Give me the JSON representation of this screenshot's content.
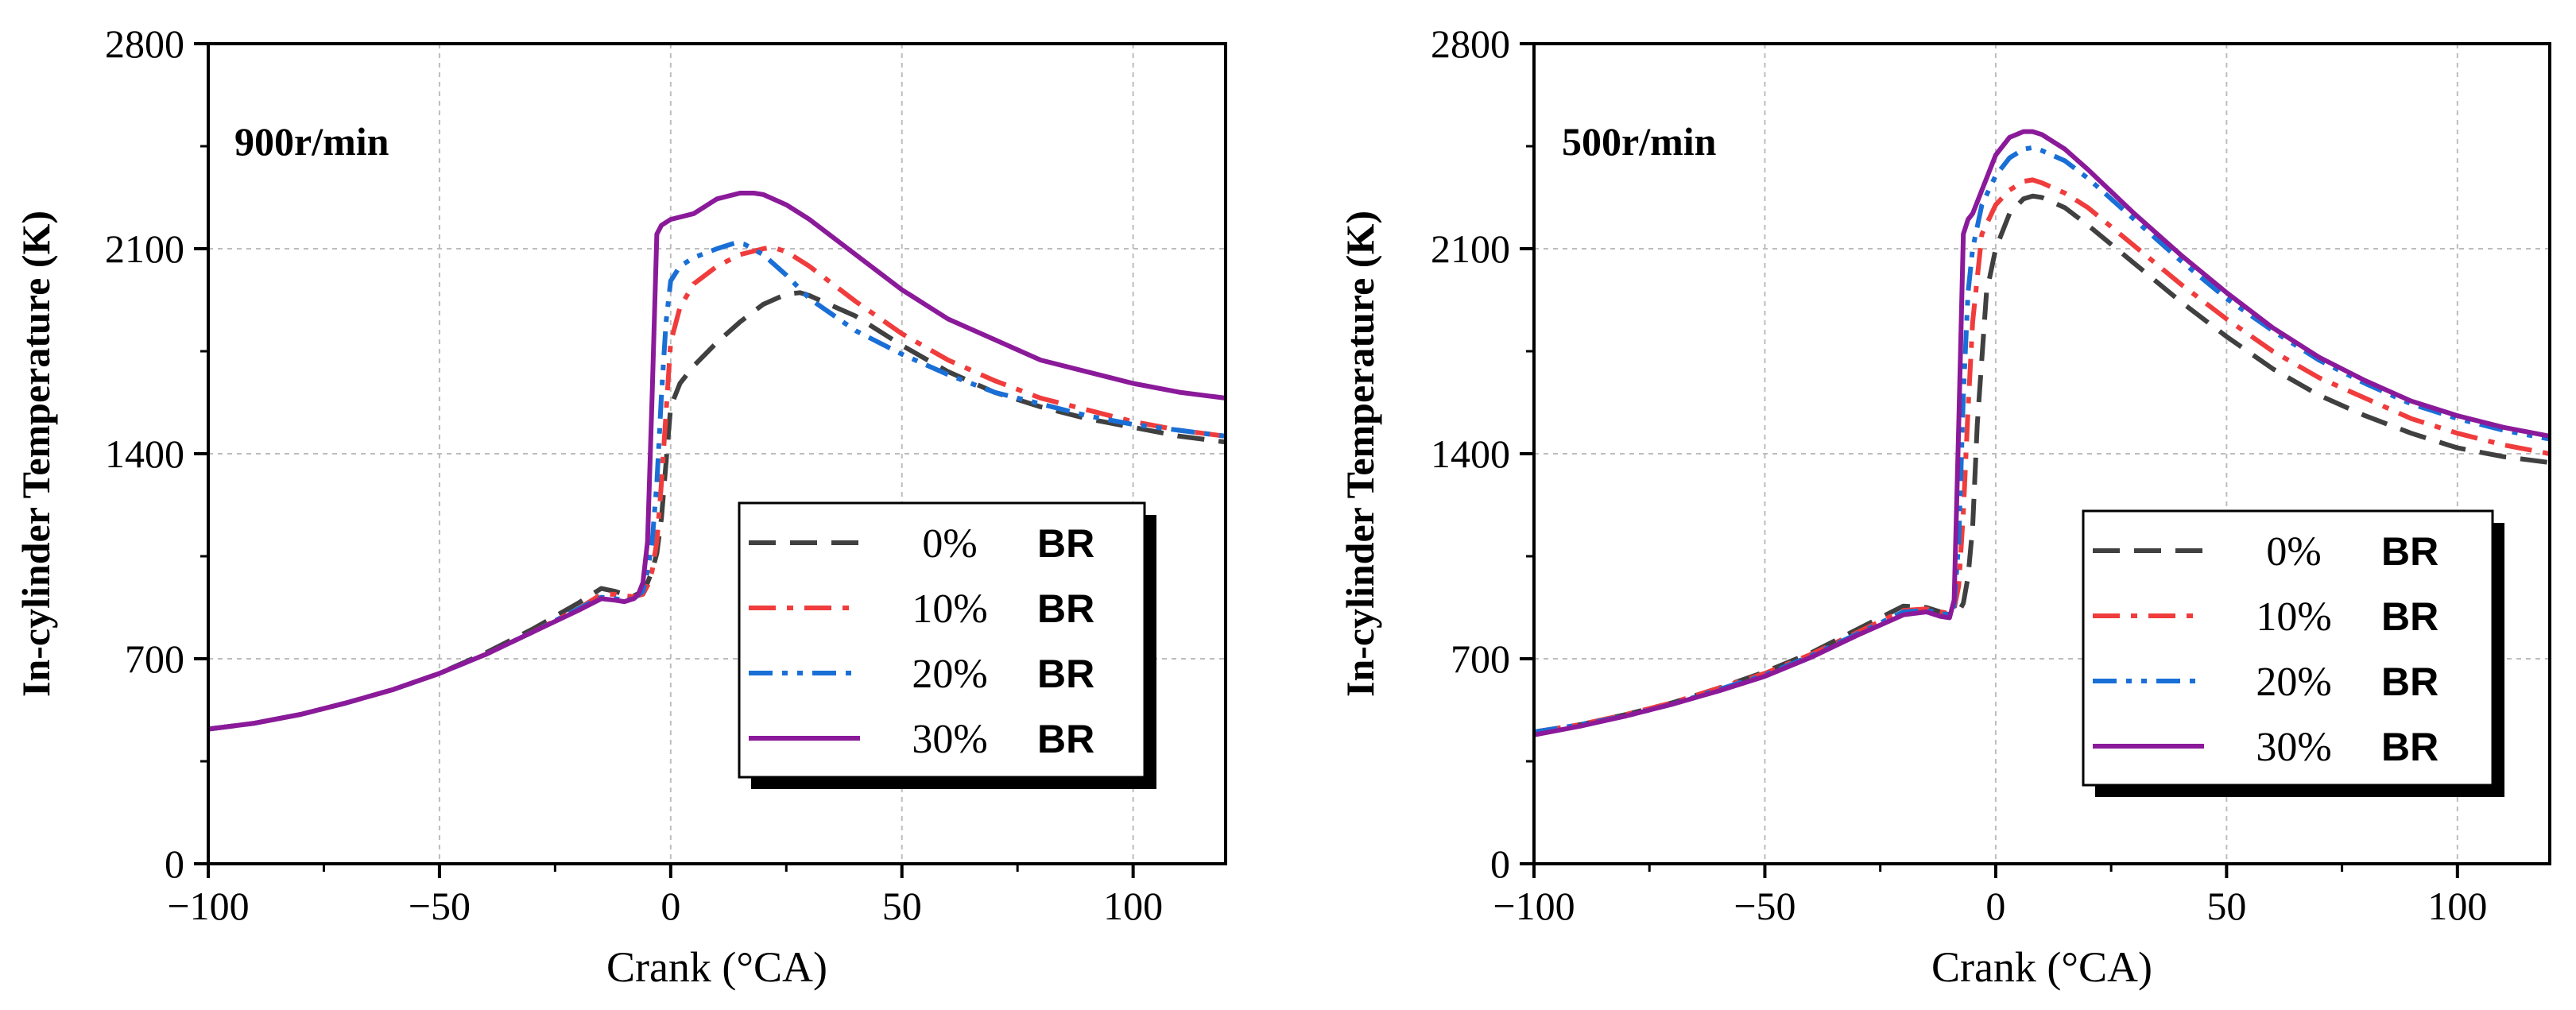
{
  "chart_data": [
    {
      "type": "line",
      "title": "",
      "annotation": "900r/min",
      "xlabel": "Crank (°CA)",
      "ylabel": "In-cylinder Temperature (K)",
      "xlim": [
        -100,
        120
      ],
      "ylim": [
        0,
        2800
      ],
      "xticks": [
        -100,
        -50,
        0,
        50,
        100
      ],
      "xtick_labels": [
        "−100",
        "−50",
        "0",
        "50",
        "100"
      ],
      "yticks": [
        0,
        700,
        1400,
        2100,
        2800
      ],
      "ytick_labels": [
        "0",
        "700",
        "1400",
        "2100",
        "2800"
      ],
      "grid": true,
      "legend_position": "center-right",
      "series": [
        {
          "name": "0%",
          "suffix": "BR",
          "color": "#404040",
          "style": "dash",
          "x": [
            -100,
            -90,
            -80,
            -70,
            -60,
            -50,
            -40,
            -30,
            -20,
            -15,
            -12,
            -10,
            -8,
            -6,
            -5,
            -4,
            -3,
            -2,
            0,
            2,
            5,
            10,
            15,
            20,
            25,
            28,
            30,
            40,
            50,
            60,
            70,
            80,
            90,
            100,
            110,
            120
          ],
          "y": [
            460,
            480,
            510,
            550,
            595,
            650,
            720,
            800,
            890,
            940,
            930,
            920,
            915,
            930,
            960,
            1000,
            1060,
            1180,
            1560,
            1640,
            1700,
            1780,
            1850,
            1910,
            1945,
            1950,
            1940,
            1870,
            1770,
            1680,
            1610,
            1560,
            1520,
            1490,
            1460,
            1440
          ]
        },
        {
          "name": "10%",
          "suffix": "BR",
          "color": "#f03c3c",
          "style": "dashdot",
          "x": [
            -100,
            -90,
            -80,
            -70,
            -60,
            -50,
            -40,
            -30,
            -20,
            -15,
            -12,
            -10,
            -8,
            -6,
            -5,
            -4,
            -3,
            -2,
            0,
            2,
            5,
            10,
            15,
            20,
            22,
            25,
            30,
            40,
            50,
            60,
            70,
            80,
            90,
            100,
            110,
            120
          ],
          "y": [
            460,
            480,
            510,
            550,
            595,
            650,
            715,
            790,
            870,
            920,
            920,
            915,
            912,
            920,
            950,
            1000,
            1100,
            1300,
            1780,
            1900,
            1980,
            2040,
            2080,
            2100,
            2105,
            2090,
            2040,
            1920,
            1810,
            1720,
            1650,
            1590,
            1550,
            1510,
            1480,
            1460
          ]
        },
        {
          "name": "20%",
          "suffix": "BR",
          "color": "#1a6fd6",
          "style": "dashdotdot",
          "x": [
            -100,
            -90,
            -80,
            -70,
            -60,
            -50,
            -40,
            -30,
            -20,
            -15,
            -12,
            -10,
            -8,
            -6,
            -5,
            -4,
            -3,
            -2,
            -1,
            0,
            2,
            5,
            10,
            14,
            16,
            20,
            25,
            30,
            40,
            50,
            60,
            70,
            80,
            90,
            100,
            110,
            120
          ],
          "y": [
            460,
            480,
            510,
            550,
            595,
            650,
            715,
            790,
            870,
            910,
            905,
            900,
            905,
            930,
            1000,
            1100,
            1300,
            1600,
            1850,
            1990,
            2040,
            2070,
            2100,
            2120,
            2115,
            2080,
            2010,
            1930,
            1820,
            1740,
            1670,
            1610,
            1570,
            1530,
            1500,
            1480,
            1460
          ]
        },
        {
          "name": "30%",
          "suffix": "BR",
          "color": "#8b1a9a",
          "style": "solid",
          "x": [
            -100,
            -90,
            -80,
            -70,
            -60,
            -50,
            -40,
            -30,
            -20,
            -15,
            -12,
            -10,
            -8,
            -7,
            -6,
            -5,
            -4,
            -3,
            -2,
            0,
            5,
            10,
            15,
            18,
            20,
            25,
            30,
            40,
            50,
            60,
            70,
            80,
            90,
            100,
            110,
            120
          ],
          "y": [
            460,
            480,
            510,
            550,
            595,
            650,
            715,
            790,
            865,
            905,
            900,
            895,
            905,
            920,
            960,
            1100,
            1600,
            2150,
            2180,
            2200,
            2220,
            2270,
            2290,
            2290,
            2285,
            2250,
            2200,
            2080,
            1960,
            1860,
            1790,
            1720,
            1680,
            1640,
            1610,
            1590
          ]
        }
      ]
    },
    {
      "type": "line",
      "title": "",
      "annotation": "500r/min",
      "xlabel": "Crank (°CA)",
      "ylabel": "In-cylinder Temperature (K)",
      "xlim": [
        -100,
        120
      ],
      "ylim": [
        0,
        2800
      ],
      "xticks": [
        -100,
        -50,
        0,
        50,
        100
      ],
      "xtick_labels": [
        "−100",
        "−50",
        "0",
        "50",
        "100"
      ],
      "yticks": [
        0,
        700,
        1400,
        2100,
        2800
      ],
      "ytick_labels": [
        "0",
        "700",
        "1400",
        "2100",
        "2800"
      ],
      "grid": true,
      "legend_position": "center-right",
      "series": [
        {
          "name": "0%",
          "suffix": "BR",
          "color": "#404040",
          "style": "dash",
          "x": [
            -100,
            -90,
            -80,
            -70,
            -60,
            -50,
            -40,
            -30,
            -20,
            -15,
            -12,
            -10,
            -8,
            -7,
            -6,
            -5,
            -4,
            -2,
            0,
            3,
            6,
            8,
            10,
            15,
            20,
            30,
            40,
            50,
            60,
            70,
            80,
            90,
            100,
            110,
            120
          ],
          "y": [
            450,
            475,
            510,
            550,
            600,
            655,
            720,
            800,
            880,
            875,
            860,
            850,
            860,
            890,
            980,
            1150,
            1500,
            1950,
            2100,
            2220,
            2270,
            2280,
            2275,
            2240,
            2180,
            2050,
            1920,
            1800,
            1690,
            1600,
            1530,
            1470,
            1420,
            1390,
            1370
          ]
        },
        {
          "name": "10%",
          "suffix": "BR",
          "color": "#f03c3c",
          "style": "dashdot",
          "x": [
            -100,
            -90,
            -80,
            -70,
            -60,
            -50,
            -40,
            -30,
            -20,
            -15,
            -12,
            -10,
            -9,
            -8,
            -7,
            -6,
            -5,
            -3,
            0,
            3,
            6,
            8,
            10,
            15,
            20,
            30,
            40,
            50,
            60,
            70,
            80,
            90,
            100,
            110,
            120
          ],
          "y": [
            450,
            475,
            510,
            550,
            600,
            650,
            715,
            790,
            865,
            870,
            860,
            855,
            870,
            950,
            1200,
            1550,
            1850,
            2150,
            2250,
            2300,
            2330,
            2335,
            2325,
            2290,
            2240,
            2110,
            1980,
            1860,
            1750,
            1660,
            1590,
            1520,
            1470,
            1430,
            1400
          ]
        },
        {
          "name": "20%",
          "suffix": "BR",
          "color": "#1a6fd6",
          "style": "dashdotdot",
          "x": [
            -100,
            -90,
            -80,
            -70,
            -60,
            -50,
            -40,
            -30,
            -20,
            -15,
            -12,
            -10,
            -9,
            -8,
            -7,
            -6,
            -5,
            -3,
            0,
            3,
            6,
            8,
            10,
            15,
            20,
            30,
            40,
            50,
            60,
            70,
            80,
            90,
            100,
            110,
            120
          ],
          "y": [
            450,
            475,
            505,
            545,
            595,
            645,
            710,
            785,
            860,
            865,
            855,
            850,
            880,
            1100,
            1600,
            1950,
            2100,
            2250,
            2350,
            2410,
            2440,
            2445,
            2435,
            2400,
            2340,
            2200,
            2060,
            1930,
            1820,
            1720,
            1640,
            1570,
            1520,
            1480,
            1450
          ]
        },
        {
          "name": "30%",
          "suffix": "BR",
          "color": "#8b1a9a",
          "style": "solid",
          "x": [
            -100,
            -90,
            -80,
            -70,
            -60,
            -50,
            -40,
            -30,
            -20,
            -15,
            -12,
            -10,
            -9,
            -8,
            -7,
            -6,
            -5,
            -3,
            0,
            3,
            6,
            8,
            10,
            15,
            20,
            30,
            40,
            50,
            60,
            70,
            80,
            90,
            100,
            110,
            120
          ],
          "y": [
            440,
            470,
            505,
            545,
            590,
            640,
            705,
            780,
            850,
            860,
            845,
            840,
            900,
            1500,
            2150,
            2200,
            2220,
            2300,
            2420,
            2480,
            2500,
            2500,
            2490,
            2440,
            2370,
            2220,
            2080,
            1950,
            1830,
            1730,
            1650,
            1580,
            1530,
            1490,
            1460
          ]
        }
      ]
    }
  ]
}
